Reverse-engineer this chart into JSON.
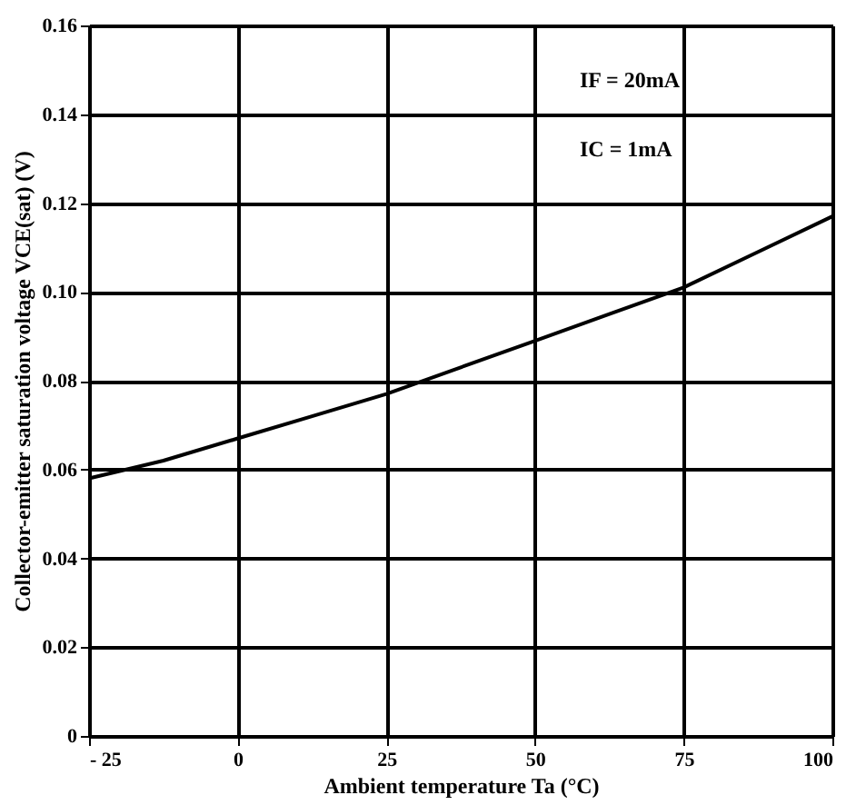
{
  "chart_data": {
    "type": "line",
    "xlabel": "Ambient temperature Ta (°C)",
    "ylabel": "Collector-emitter saturation voltage VCE(sat) (V)",
    "annotations": [
      "IF = 20mA",
      "IC = 1mA"
    ],
    "x": [
      -25,
      -12.5,
      0,
      12.5,
      25,
      37.5,
      50,
      62.5,
      75,
      87.5,
      100
    ],
    "series": [
      {
        "color": "#000000",
        "values": [
          0.058,
          0.062,
          0.067,
          0.072,
          0.077,
          0.083,
          0.089,
          0.095,
          0.101,
          0.109,
          0.117
        ]
      }
    ],
    "xlim": [
      -25,
      100
    ],
    "xticks": [
      {
        "value": -25,
        "label": "- 25"
      },
      0,
      25,
      50,
      75,
      100
    ],
    "ylim": [
      0,
      0.16
    ],
    "yticks": [
      0,
      0.02,
      0.04,
      0.06,
      0.08,
      {
        "value": 0.1,
        "label": "0.10"
      },
      0.12,
      0.14,
      0.16
    ],
    "grid": true,
    "marker": "none",
    "line_style": "solid"
  }
}
